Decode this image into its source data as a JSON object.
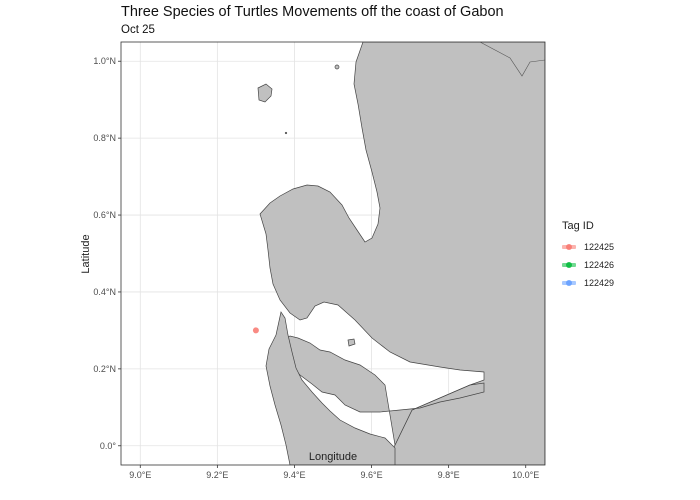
{
  "title": "Three Species of Turtles Movements off the coast of Gabon",
  "subtitle": "Oct 25",
  "axes": {
    "x": {
      "label": "Longitude",
      "range": [
        8.95,
        10.05
      ],
      "ticks": [
        {
          "v": 9.0,
          "label": "9.0°E"
        },
        {
          "v": 9.2,
          "label": "9.2°E"
        },
        {
          "v": 9.4,
          "label": "9.4°E"
        },
        {
          "v": 9.6,
          "label": "9.6°E"
        },
        {
          "v": 9.8,
          "label": "9.8°E"
        },
        {
          "v": 10.0,
          "label": "10.0°E"
        }
      ]
    },
    "y": {
      "label": "Latitude",
      "range": [
        -0.05,
        1.05
      ],
      "ticks": [
        {
          "v": 0.0,
          "label": "0.0°"
        },
        {
          "v": 0.2,
          "label": "0.2°N"
        },
        {
          "v": 0.4,
          "label": "0.4°N"
        },
        {
          "v": 0.6,
          "label": "0.6°N"
        },
        {
          "v": 0.8,
          "label": "0.8°N"
        },
        {
          "v": 1.0,
          "label": "1.0°N"
        }
      ]
    },
    "grid": true
  },
  "map": {
    "land_color": "#c0c0c0",
    "sea_color": "#ffffff",
    "border_color": "#444444"
  },
  "legend": {
    "title": "Tag ID",
    "position": "right",
    "items": [
      {
        "label": "122425",
        "color": "#f8766d"
      },
      {
        "label": "122426",
        "color": "#00ba38"
      },
      {
        "label": "122429",
        "color": "#619cff"
      }
    ]
  },
  "chart_data": {
    "type": "scatter",
    "title": "Three Species of Turtles Movements off the coast of Gabon",
    "subtitle": "Oct 25",
    "xlabel": "Longitude",
    "ylabel": "Latitude",
    "xlim": [
      8.95,
      10.05
    ],
    "ylim": [
      -0.05,
      1.05
    ],
    "series": [
      {
        "name": "122425",
        "color": "#f8766d",
        "points": [
          {
            "lon": 9.3,
            "lat": 0.3
          }
        ]
      },
      {
        "name": "122426",
        "color": "#00ba38",
        "points": []
      },
      {
        "name": "122429",
        "color": "#619cff",
        "points": []
      }
    ]
  }
}
